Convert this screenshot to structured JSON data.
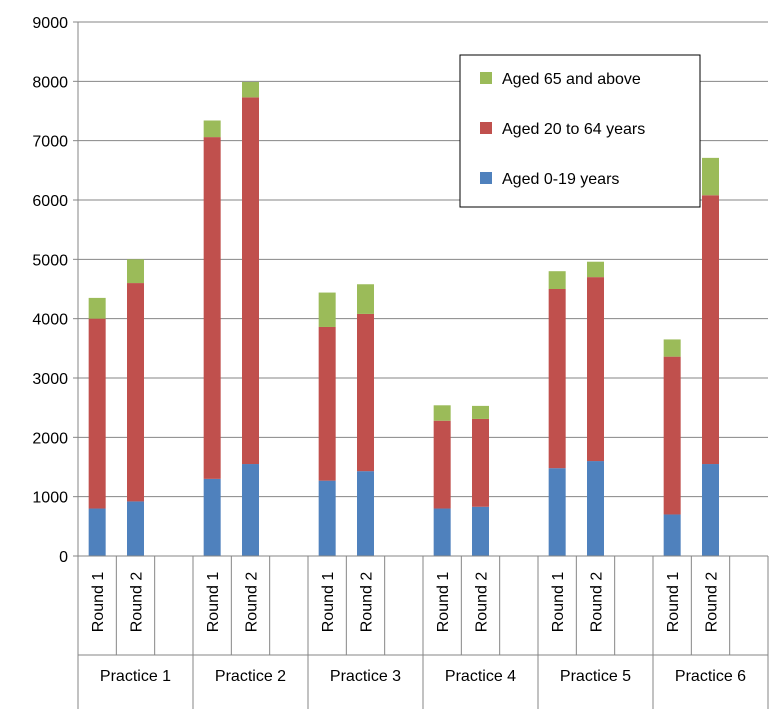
{
  "chart_data": {
    "type": "bar",
    "stacked": true,
    "ylim": [
      0,
      9000
    ],
    "yticks": [
      0,
      1000,
      2000,
      3000,
      4000,
      5000,
      6000,
      7000,
      8000,
      9000
    ],
    "grid": true,
    "legend_position": "top-right",
    "groups": [
      {
        "label": "Practice 1",
        "rounds": [
          "Round 1",
          "Round 2"
        ]
      },
      {
        "label": "Practice 2",
        "rounds": [
          "Round 1",
          "Round 2"
        ]
      },
      {
        "label": "Practice 3",
        "rounds": [
          "Round 1",
          "Round 2"
        ]
      },
      {
        "label": "Practice 4",
        "rounds": [
          "Round 1",
          "Round 2"
        ]
      },
      {
        "label": "Practice 5",
        "rounds": [
          "Round 1",
          "Round 2"
        ]
      },
      {
        "label": "Practice 6",
        "rounds": [
          "Round 1",
          "Round 2"
        ]
      }
    ],
    "series": [
      {
        "name": "Aged 0-19 years",
        "color": "#4f81bd",
        "values": [
          800,
          920,
          1300,
          1550,
          1270,
          1430,
          800,
          830,
          1480,
          1600,
          700,
          1550
        ]
      },
      {
        "name": "Aged 20 to 64 years",
        "color": "#c0504d",
        "values": [
          3200,
          3680,
          5760,
          6180,
          2590,
          2650,
          1480,
          1480,
          3020,
          3100,
          2660,
          4530
        ]
      },
      {
        "name": "Aged 65 and above",
        "color": "#9bbb59",
        "values": [
          350,
          400,
          280,
          260,
          580,
          500,
          260,
          220,
          300,
          260,
          290,
          630
        ]
      }
    ]
  }
}
